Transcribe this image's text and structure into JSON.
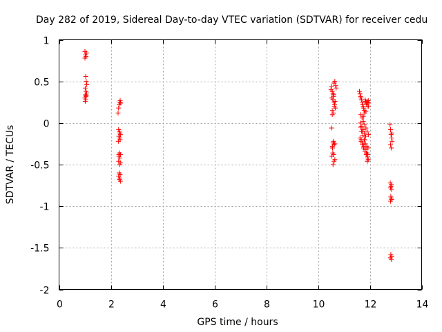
{
  "chart_data": {
    "type": "scatter",
    "title": "Day 282 of 2019, Sidereal Day-to-day VTEC variation (SDTVAR) for receiver cedu",
    "xlabel": "GPS time / hours",
    "ylabel": "SDTVAR / TECUs",
    "xlim": [
      0,
      14
    ],
    "ylim": [
      -2,
      1
    ],
    "xticks": [
      0,
      2,
      4,
      6,
      8,
      10,
      12,
      14
    ],
    "xtick_labels": [
      "0",
      "2",
      "4",
      "6",
      "8",
      "10",
      "12",
      "14"
    ],
    "yticks": [
      -2,
      -1.5,
      -1,
      -0.5,
      0,
      0.5,
      1
    ],
    "ytick_labels": [
      "-2",
      "-1.5",
      "-1",
      "-0.5",
      "0",
      "0.5",
      "1"
    ],
    "grid": true,
    "marker": "+",
    "color": "#ff0000",
    "series": [
      {
        "name": "SDTVAR",
        "x": [
          1.0,
          1.02,
          1.04,
          1.06,
          1.0,
          1.03,
          1.05,
          1.07,
          1.01,
          1.04,
          1.06,
          1.02,
          1.05,
          1.0,
          1.03,
          1.06,
          1.01,
          1.04,
          2.28,
          2.3,
          2.32,
          2.34,
          2.36,
          2.38,
          2.3,
          2.33,
          2.35,
          2.37,
          2.31,
          2.34,
          2.36,
          2.29,
          2.33,
          2.37,
          2.31,
          2.35,
          2.3,
          2.34,
          2.38,
          2.32,
          2.36,
          2.3,
          2.35,
          2.33,
          2.37,
          2.31,
          10.5,
          10.52,
          10.55,
          10.58,
          10.6,
          10.62,
          10.65,
          10.68,
          10.7,
          10.53,
          10.57,
          10.61,
          10.64,
          10.67,
          10.55,
          10.6,
          10.63,
          10.66,
          10.52,
          10.58,
          10.62,
          10.55,
          10.6,
          10.65,
          10.57,
          10.53,
          10.6,
          10.65,
          10.58,
          10.62,
          10.56,
          10.6,
          10.55,
          11.6,
          11.62,
          11.64,
          11.66,
          11.68,
          11.7,
          11.72,
          11.74,
          11.76,
          11.78,
          11.8,
          11.82,
          11.84,
          11.86,
          11.88,
          11.9,
          11.92,
          11.94,
          11.96,
          11.65,
          11.7,
          11.75,
          11.8,
          11.85,
          11.9,
          11.95,
          11.63,
          11.68,
          11.73,
          11.78,
          11.83,
          11.88,
          11.93,
          11.66,
          11.71,
          11.76,
          11.81,
          11.86,
          11.91,
          11.62,
          11.67,
          11.72,
          11.77,
          11.82,
          11.87,
          11.92,
          11.64,
          11.69,
          11.74,
          11.79,
          11.84,
          11.89,
          11.94,
          11.7,
          11.8,
          11.9,
          11.75,
          11.85,
          11.95,
          11.72,
          11.82,
          11.92,
          12.78,
          12.8,
          12.82,
          12.84,
          12.86,
          12.8,
          12.83,
          12.85,
          12.79,
          12.82,
          12.84,
          12.8,
          12.83,
          12.81,
          12.84,
          12.8,
          12.82,
          12.85,
          12.79,
          12.83,
          12.81
        ],
        "y": [
          0.86,
          0.82,
          0.8,
          0.84,
          0.78,
          0.56,
          0.5,
          0.46,
          0.42,
          0.38,
          0.36,
          0.34,
          0.33,
          0.3,
          0.28,
          0.36,
          0.26,
          0.32,
          0.12,
          0.18,
          0.22,
          0.25,
          0.27,
          0.24,
          -0.08,
          -0.1,
          -0.12,
          -0.14,
          -0.16,
          -0.18,
          -0.2,
          -0.22,
          -0.36,
          -0.38,
          -0.4,
          -0.42,
          -0.46,
          -0.5,
          -0.48,
          -0.6,
          -0.62,
          -0.64,
          -0.66,
          -0.68,
          -0.7,
          -0.38,
          0.4,
          0.44,
          0.38,
          0.35,
          0.32,
          0.48,
          0.5,
          0.45,
          0.42,
          0.3,
          0.28,
          0.25,
          0.22,
          0.18,
          0.15,
          0.12,
          0.2,
          0.26,
          -0.06,
          -0.24,
          -0.26,
          -0.28,
          -0.22,
          -0.25,
          -0.36,
          -0.4,
          -0.38,
          -0.44,
          -0.5,
          -0.46,
          -0.3,
          0.34,
          0.1,
          0.38,
          0.35,
          0.32,
          0.3,
          0.28,
          0.25,
          0.22,
          0.2,
          0.18,
          0.15,
          0.12,
          0.28,
          0.26,
          0.24,
          0.22,
          0.2,
          0.25,
          0.27,
          0.24,
          0.1,
          0.06,
          0.02,
          -0.02,
          -0.06,
          -0.1,
          -0.14,
          -0.05,
          -0.1,
          -0.15,
          -0.2,
          -0.25,
          -0.28,
          -0.3,
          -0.22,
          -0.26,
          -0.3,
          -0.34,
          -0.38,
          -0.42,
          -0.18,
          -0.2,
          -0.24,
          -0.28,
          -0.32,
          -0.36,
          -0.4,
          0.0,
          -0.04,
          -0.08,
          -0.12,
          -0.16,
          -0.36,
          -0.44,
          -0.1,
          -0.2,
          -0.46,
          0.08,
          0.14,
          0.2,
          -0.26,
          -0.32,
          -0.38,
          -0.02,
          -0.08,
          -0.14,
          -0.18,
          -0.22,
          -0.26,
          -0.3,
          -0.12,
          -0.72,
          -0.76,
          -0.8,
          -0.78,
          -0.74,
          -0.88,
          -0.92,
          -0.94,
          -0.9,
          -1.6,
          -1.62,
          -1.64,
          -1.58
        ]
      }
    ]
  }
}
